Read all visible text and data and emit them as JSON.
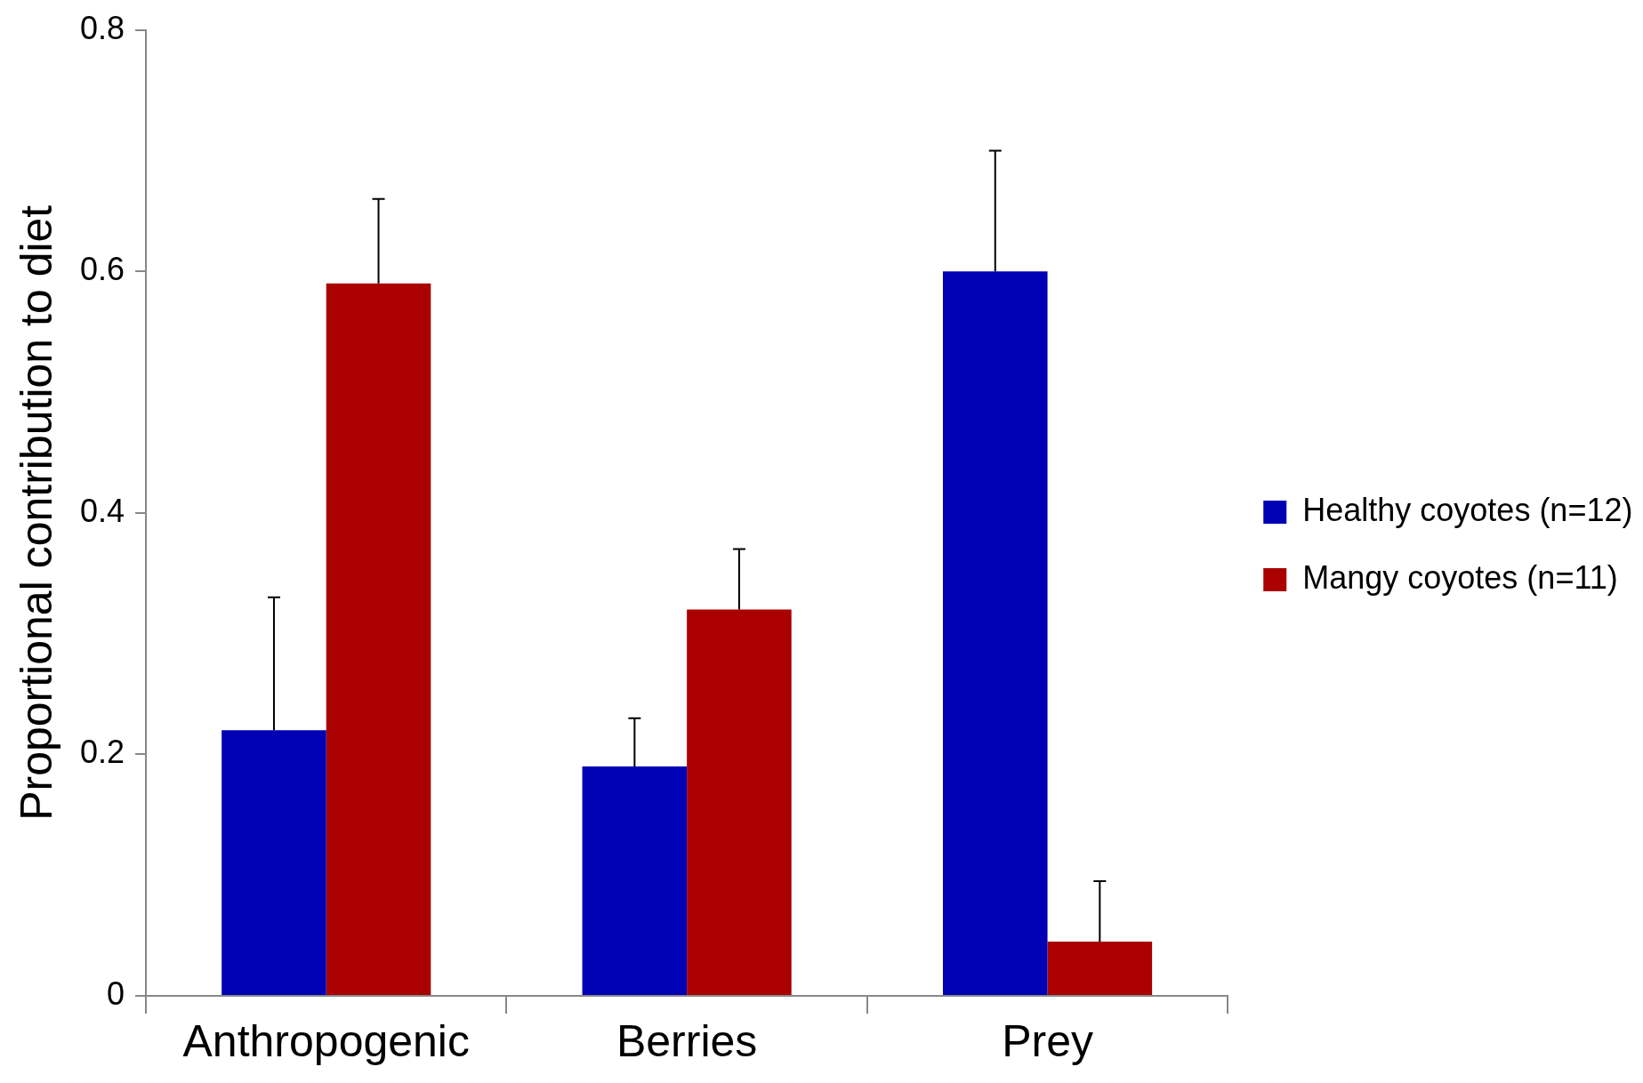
{
  "chart_data": {
    "type": "bar",
    "ylabel": "Proportional contribution to diet",
    "categories": [
      "Anthropogenic",
      "Berries",
      "Prey"
    ],
    "series": [
      {
        "name": "Healthy coyotes (n=12)",
        "color": "#0000b4",
        "values": [
          0.22,
          0.19,
          0.6
        ],
        "errors": [
          [
            0.22,
            0.33
          ],
          [
            0.19,
            0.23
          ],
          [
            0.6,
            0.7
          ]
        ]
      },
      {
        "name": "Mangy coyotes (n=11)",
        "color": "#aa0000",
        "values": [
          0.59,
          0.32,
          0.045
        ],
        "errors": [
          [
            0.59,
            0.66
          ],
          [
            0.32,
            0.37
          ],
          [
            0.045,
            0.095
          ]
        ]
      }
    ],
    "ylim": [
      0,
      0.8
    ],
    "yticks": [
      0,
      0.2,
      0.4,
      0.6,
      0.8
    ],
    "grid": false,
    "legend": "right"
  }
}
